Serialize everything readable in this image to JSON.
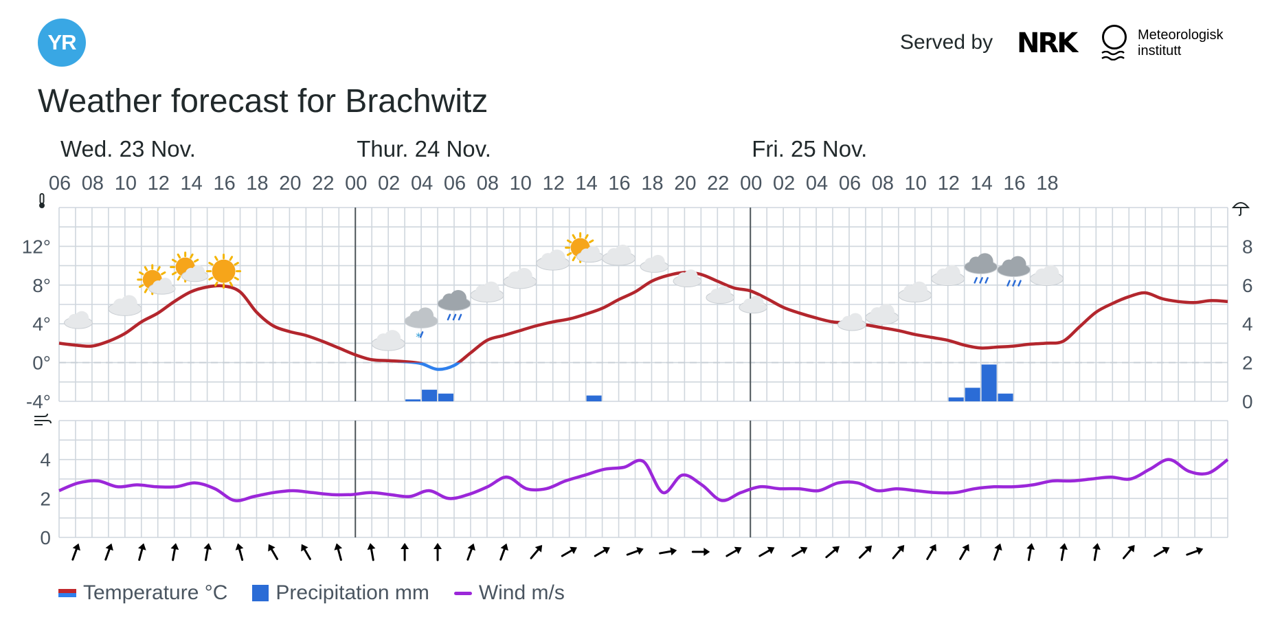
{
  "header": {
    "logo_text": "YR",
    "served_by": "Served by",
    "nrk_logo": "NRK",
    "met_line1": "Meteorologisk",
    "met_line2": "institutt"
  },
  "title": "Weather forecast for Brachwitz",
  "legend": {
    "temperature": "Temperature °C",
    "precipitation": "Precipitation mm",
    "wind": "Wind m/s"
  },
  "colors": {
    "temperature": "#b3262d",
    "temperature_below_zero": "#2f80ed",
    "precipitation": "#2b6cd6",
    "wind": "#9b27d9",
    "logo": "#39a7e4"
  },
  "icons": {
    "thermometer": "thermometer-icon",
    "umbrella": "umbrella-icon",
    "wind": "wind-icon"
  },
  "chart_data": {
    "type": "line",
    "days": [
      {
        "label": "Wed. 23 Nov.",
        "hour_index": 0
      },
      {
        "label": "Thur. 24 Nov.",
        "hour_index": 18
      },
      {
        "label": "Fri. 25 Nov.",
        "hour_index": 42
      }
    ],
    "hour_ticks": [
      "06",
      "08",
      "10",
      "12",
      "14",
      "16",
      "18",
      "20",
      "22",
      "00",
      "02",
      "04",
      "06",
      "08",
      "10",
      "12",
      "14",
      "16",
      "18",
      "20",
      "22",
      "00",
      "02",
      "04",
      "06",
      "08",
      "10",
      "12",
      "14",
      "16",
      "18"
    ],
    "temperature": {
      "unit": "°C",
      "ylim": [
        -4,
        16
      ],
      "ticks": [
        "-4°",
        "0°",
        "4°",
        "8°",
        "12°"
      ],
      "tick_values": [
        -4,
        0,
        4,
        8,
        12
      ],
      "values": [
        2.0,
        1.8,
        1.7,
        2.2,
        3.0,
        4.2,
        5.1,
        6.3,
        7.3,
        7.8,
        7.9,
        7.3,
        5.2,
        3.8,
        3.2,
        2.8,
        2.2,
        1.5,
        0.8,
        0.3,
        0.2,
        0.1,
        -0.1,
        -0.7,
        -0.3,
        1.0,
        2.3,
        2.8,
        3.3,
        3.8,
        4.2,
        4.5,
        5.0,
        5.6,
        6.5,
        7.3,
        8.4,
        9.0,
        9.3,
        9.1,
        8.4,
        7.7,
        7.4,
        6.6,
        5.7,
        5.1,
        4.6,
        4.2,
        4.1,
        3.9,
        3.6,
        3.3,
        2.9,
        2.6,
        2.3,
        1.8,
        1.5,
        1.6,
        1.7,
        1.9,
        2.0,
        2.2,
        3.7,
        5.2,
        6.1,
        6.8,
        7.2,
        6.6,
        6.3,
        6.2,
        6.4,
        6.3
      ]
    },
    "precipitation": {
      "unit": "mm",
      "ylim": [
        0,
        10
      ],
      "ticks": [
        "0",
        "2",
        "4",
        "6",
        "8"
      ],
      "tick_values": [
        0,
        2,
        4,
        6,
        8
      ],
      "bars": [
        {
          "hour_index": 21,
          "value": 0.1
        },
        {
          "hour_index": 22,
          "value": 0.6
        },
        {
          "hour_index": 23,
          "value": 0.4
        },
        {
          "hour_index": 32,
          "value": 0.3
        },
        {
          "hour_index": 54,
          "value": 0.2
        },
        {
          "hour_index": 55,
          "value": 0.7
        },
        {
          "hour_index": 56,
          "value": 1.9
        },
        {
          "hour_index": 57,
          "value": 0.4
        }
      ]
    },
    "wind": {
      "unit": "m/s",
      "ylim": [
        0,
        6
      ],
      "ticks": [
        "0",
        "2",
        "4"
      ],
      "tick_values": [
        0,
        2,
        4
      ],
      "values": [
        2.4,
        2.8,
        2.9,
        2.6,
        2.7,
        2.6,
        2.6,
        2.8,
        2.5,
        1.9,
        2.1,
        2.3,
        2.4,
        2.3,
        2.2,
        2.2,
        2.3,
        2.2,
        2.1,
        2.4,
        2.0,
        2.2,
        2.6,
        3.1,
        2.5,
        2.5,
        2.9,
        3.2,
        3.5,
        3.6,
        3.9,
        2.3,
        3.2,
        2.7,
        1.9,
        2.3,
        2.6,
        2.5,
        2.5,
        2.4,
        2.8,
        2.8,
        2.4,
        2.5,
        2.4,
        2.3,
        2.3,
        2.5,
        2.6,
        2.6,
        2.7,
        2.9,
        2.9,
        3.0,
        3.1,
        3.0,
        3.5,
        4.0,
        3.4,
        3.3,
        4.0
      ],
      "direction_deg": [
        20,
        20,
        15,
        10,
        10,
        345,
        330,
        330,
        345,
        350,
        0,
        0,
        20,
        20,
        40,
        60,
        60,
        70,
        80,
        90,
        60,
        60,
        60,
        50,
        45,
        40,
        30,
        30,
        20,
        10,
        10,
        10,
        40,
        60,
        70
      ]
    },
    "symbols": [
      {
        "hour_index": 0,
        "type": "night-partly-cloudy",
        "temp": 5.2
      },
      {
        "hour_index": 3,
        "type": "cloudy",
        "temp": 6.4
      },
      {
        "hour_index": 5,
        "type": "partly-cloudy-day",
        "temp": 8.7
      },
      {
        "hour_index": 7,
        "type": "partly-cloudy-day",
        "temp": 10.0
      },
      {
        "hour_index": 9,
        "type": "clear-day",
        "temp": 10.0
      },
      {
        "hour_index": 11,
        "type": "clear-night",
        "temp": 7.8
      },
      {
        "hour_index": 13,
        "type": "clear-night",
        "temp": 5.6
      },
      {
        "hour_index": 15,
        "type": "clear-night",
        "temp": 4.0
      },
      {
        "hour_index": 17,
        "type": "clear-night",
        "temp": 2.8
      },
      {
        "hour_index": 19,
        "type": "cloudy",
        "temp": 2.8
      },
      {
        "hour_index": 21,
        "type": "light-snow",
        "temp": 4.7
      },
      {
        "hour_index": 23,
        "type": "rain",
        "temp": 6.5
      },
      {
        "hour_index": 25,
        "type": "cloudy",
        "temp": 7.8
      },
      {
        "hour_index": 27,
        "type": "cloudy",
        "temp": 9.2
      },
      {
        "hour_index": 29,
        "type": "cloudy",
        "temp": 11.1
      },
      {
        "hour_index": 31,
        "type": "partly-cloudy-day",
        "temp": 12.0
      },
      {
        "hour_index": 33,
        "type": "cloudy",
        "temp": 11.6
      },
      {
        "hour_index": 35,
        "type": "night-partly-cloudy",
        "temp": 11.0
      },
      {
        "hour_index": 37,
        "type": "night-partly-cloudy",
        "temp": 9.5
      },
      {
        "hour_index": 39,
        "type": "night-partly-cloudy",
        "temp": 7.8
      },
      {
        "hour_index": 41,
        "type": "night-partly-cloudy",
        "temp": 6.8
      },
      {
        "hour_index": 43,
        "type": "clear-night",
        "temp": 6.4
      },
      {
        "hour_index": 45,
        "type": "clear-night",
        "temp": 5.4
      },
      {
        "hour_index": 47,
        "type": "night-partly-cloudy",
        "temp": 5.0
      },
      {
        "hour_index": 49,
        "type": "cloudy",
        "temp": 5.5
      },
      {
        "hour_index": 51,
        "type": "cloudy",
        "temp": 7.8
      },
      {
        "hour_index": 53,
        "type": "cloudy",
        "temp": 9.5
      },
      {
        "hour_index": 55,
        "type": "rain",
        "temp": 10.3
      },
      {
        "hour_index": 57,
        "type": "rain",
        "temp": 10.0
      },
      {
        "hour_index": 59,
        "type": "cloudy",
        "temp": 9.5
      }
    ],
    "grid": true,
    "legend_position": "bottom-left"
  }
}
